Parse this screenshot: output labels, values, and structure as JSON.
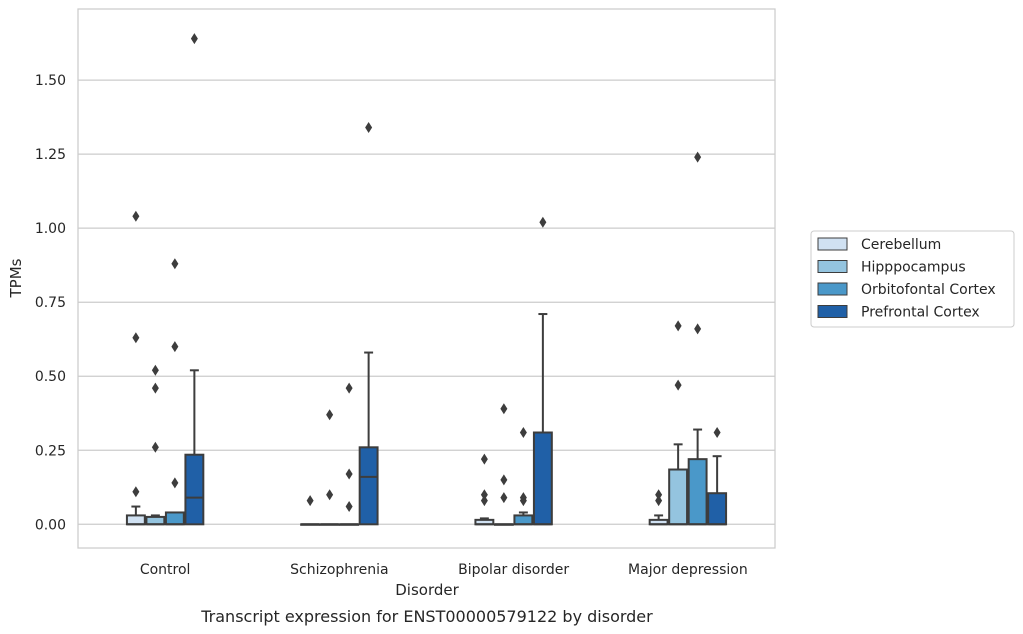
{
  "chart_data": {
    "type": "box",
    "xlabel": "Disorder",
    "ylabel": "TPMs",
    "caption": "Transcript expression for ENST00000579122 by disorder",
    "ylim": [
      -0.08,
      1.74
    ],
    "yticks": [
      "0.00",
      "0.25",
      "0.50",
      "0.75",
      "1.00",
      "1.25",
      "1.50"
    ],
    "ytick_values": [
      0,
      0.25,
      0.5,
      0.75,
      1.0,
      1.25,
      1.5
    ],
    "grid": "horizontal",
    "legend_position": "right",
    "categories": [
      "Control",
      "Schizophrenia",
      "Bipolar disorder",
      "Major depression"
    ],
    "series": [
      {
        "name": "Cerebellum",
        "color": "#d0e1f2",
        "boxes": [
          {
            "whislo": 0,
            "q1": 0,
            "med": 0,
            "q3": 0.03,
            "whishi": 0.06,
            "fliers": [
              0.11,
              0.63,
              1.04
            ]
          },
          {
            "whislo": 0,
            "q1": 0,
            "med": 0,
            "q3": 0,
            "whishi": 0,
            "fliers": [
              0.08
            ]
          },
          {
            "whislo": 0,
            "q1": 0,
            "med": 0,
            "q3": 0.015,
            "whishi": 0.02,
            "fliers": [
              0.08,
              0.1,
              0.22
            ]
          },
          {
            "whislo": 0,
            "q1": 0,
            "med": 0,
            "q3": 0.015,
            "whishi": 0.03,
            "fliers": [
              0.08,
              0.1
            ]
          }
        ]
      },
      {
        "name": "Hipppocampus",
        "color": "#94c4df",
        "boxes": [
          {
            "whislo": 0,
            "q1": 0,
            "med": 0,
            "q3": 0.025,
            "whishi": 0.03,
            "fliers": [
              0.26,
              0.46,
              0.52
            ]
          },
          {
            "whislo": 0,
            "q1": 0,
            "med": 0,
            "q3": 0,
            "whishi": 0,
            "fliers": [
              0.1,
              0.37
            ]
          },
          {
            "whislo": 0,
            "q1": 0,
            "med": 0,
            "q3": 0,
            "whishi": 0,
            "fliers": [
              0.09,
              0.15,
              0.39
            ]
          },
          {
            "whislo": 0,
            "q1": 0,
            "med": 0,
            "q3": 0.185,
            "whishi": 0.27,
            "fliers": [
              0.47,
              0.67
            ]
          }
        ]
      },
      {
        "name": "Orbitofontal Cortex",
        "color": "#4a98c9",
        "boxes": [
          {
            "whislo": 0,
            "q1": 0,
            "med": 0,
            "q3": 0.04,
            "whishi": 0.04,
            "fliers": [
              0.14,
              0.6,
              0.88
            ]
          },
          {
            "whislo": 0,
            "q1": 0,
            "med": 0,
            "q3": 0,
            "whishi": 0,
            "fliers": [
              0.06,
              0.17,
              0.46
            ]
          },
          {
            "whislo": 0,
            "q1": 0,
            "med": 0,
            "q3": 0.03,
            "whishi": 0.04,
            "fliers": [
              0.08,
              0.09,
              0.31
            ]
          },
          {
            "whislo": 0,
            "q1": 0,
            "med": 0,
            "q3": 0.22,
            "whishi": 0.32,
            "fliers": [
              0.66,
              1.24
            ]
          }
        ]
      },
      {
        "name": "Prefrontal Cortex",
        "color": "#2060a7",
        "boxes": [
          {
            "whislo": 0,
            "q1": 0,
            "med": 0.09,
            "q3": 0.235,
            "whishi": 0.52,
            "fliers": [
              1.64
            ]
          },
          {
            "whislo": 0,
            "q1": 0,
            "med": 0.16,
            "q3": 0.26,
            "whishi": 0.58,
            "fliers": [
              1.34
            ]
          },
          {
            "whislo": 0,
            "q1": 0,
            "med": 0,
            "q3": 0.31,
            "whishi": 0.71,
            "fliers": [
              1.02
            ]
          },
          {
            "whislo": 0,
            "q1": 0,
            "med": 0,
            "q3": 0.105,
            "whishi": 0.23,
            "fliers": [
              0.31
            ]
          }
        ]
      }
    ]
  }
}
